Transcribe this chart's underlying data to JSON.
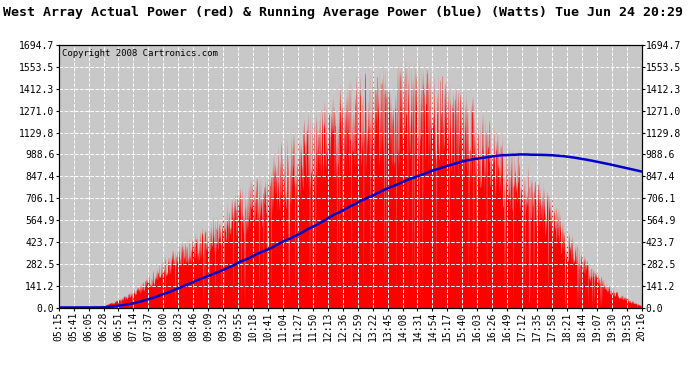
{
  "title": "West Array Actual Power (red) & Running Average Power (blue) (Watts) Tue Jun 24 20:29",
  "copyright": "Copyright 2008 Cartronics.com",
  "background_color": "#c8c8c8",
  "plot_bg_color": "#c8c8c8",
  "grid_color": "#ffffff",
  "yticks": [
    0.0,
    141.2,
    282.5,
    423.7,
    564.9,
    706.1,
    847.4,
    988.6,
    1129.8,
    1271.0,
    1412.3,
    1553.5,
    1694.7
  ],
  "ymax": 1694.7,
  "ymin": 0.0,
  "xtick_labels": [
    "05:15",
    "05:41",
    "06:05",
    "06:28",
    "06:51",
    "07:14",
    "07:37",
    "08:00",
    "08:23",
    "08:46",
    "09:09",
    "09:32",
    "09:55",
    "10:18",
    "10:41",
    "11:04",
    "11:27",
    "11:50",
    "12:13",
    "12:36",
    "12:59",
    "13:22",
    "13:45",
    "14:08",
    "14:31",
    "14:54",
    "15:17",
    "15:40",
    "16:03",
    "16:26",
    "16:49",
    "17:12",
    "17:35",
    "17:58",
    "18:21",
    "18:44",
    "19:07",
    "19:30",
    "19:53",
    "20:16"
  ],
  "fill_color": "#ff0000",
  "line_color": "#0000cc",
  "title_fontsize": 9.5,
  "tick_fontsize": 7,
  "copyright_fontsize": 6.5
}
